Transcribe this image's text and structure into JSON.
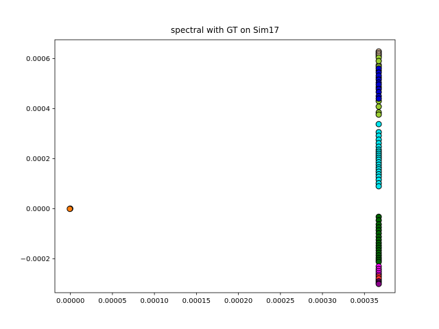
{
  "chart_data": {
    "type": "scatter",
    "title": "spectral with GT on Sim17",
    "xlabel": "",
    "ylabel": "",
    "xlim": [
      -1.85e-05,
      0.0003865
    ],
    "ylim": [
      -0.000335,
      0.000675
    ],
    "grid": false,
    "legend": "none",
    "x_ticks": [
      0.0,
      5e-05,
      0.0001,
      0.00015,
      0.0002,
      0.00025,
      0.0003,
      0.00035
    ],
    "x_tick_labels": [
      "0.00000",
      "0.00005",
      "0.00010",
      "0.00015",
      "0.00020",
      "0.00025",
      "0.00030",
      "0.00035"
    ],
    "y_ticks": [
      -0.0002,
      0.0,
      0.0002,
      0.0004,
      0.0006
    ],
    "y_tick_labels": [
      "−0.0002",
      "0.0000",
      "0.0002",
      "0.0004",
      "0.0006"
    ],
    "series": [
      {
        "color": "#ff7f0e",
        "points": [
          [
            -5e-07,
            0.0
          ],
          [
            -2e-07,
            5e-07
          ],
          [
            -7e-07,
            -3e-07
          ]
        ]
      },
      {
        "color": "#ffdab9",
        "points": [
          [
            0.000367,
            0.000628
          ],
          [
            0.000367,
            0.000622
          ],
          [
            0.000367,
            0.000616
          ],
          [
            0.000367,
            0.00061
          ],
          [
            0.000367,
            0.000574
          ]
        ]
      },
      {
        "color": "#9acd32",
        "points": [
          [
            0.000367,
            0.000604
          ],
          [
            0.000367,
            0.00059
          ],
          [
            0.000367,
            0.000568
          ],
          [
            0.000367,
            0.000552
          ],
          [
            0.000367,
            0.000524
          ],
          [
            0.000367,
            0.000486
          ],
          [
            0.000367,
            0.00043
          ],
          [
            0.000367,
            0.000408
          ],
          [
            0.000367,
            0.000385
          ],
          [
            0.000367,
            0.000376
          ]
        ]
      },
      {
        "color": "#0000cd",
        "points": [
          [
            0.000367,
            0.00056
          ],
          [
            0.000367,
            0.000544
          ],
          [
            0.000367,
            0.000532
          ],
          [
            0.000367,
            0.000516
          ],
          [
            0.000367,
            0.000504
          ],
          [
            0.000367,
            0.000496
          ],
          [
            0.000367,
            0.000478
          ],
          [
            0.000367,
            0.000466
          ],
          [
            0.000367,
            0.00045
          ],
          [
            0.000367,
            0.00044
          ]
        ]
      },
      {
        "color": "#00e5ee",
        "points": [
          [
            0.000367,
            0.000338
          ],
          [
            0.000367,
            0.000306
          ],
          [
            0.000367,
            0.000292
          ],
          [
            0.000367,
            0.000276
          ],
          [
            0.000367,
            0.000262
          ],
          [
            0.000367,
            0.000248
          ],
          [
            0.000367,
            0.000236
          ],
          [
            0.000367,
            0.000228
          ],
          [
            0.000367,
            0.00022
          ],
          [
            0.000367,
            0.000212
          ],
          [
            0.000367,
            0.000204
          ],
          [
            0.000367,
            0.000196
          ],
          [
            0.000367,
            0.000186
          ],
          [
            0.000367,
            0.000176
          ],
          [
            0.000367,
            0.000166
          ],
          [
            0.000367,
            0.000158
          ],
          [
            0.000367,
            0.000148
          ],
          [
            0.000367,
            0.000138
          ],
          [
            0.000367,
            0.000128
          ],
          [
            0.000367,
            0.000116
          ],
          [
            0.000367,
            0.000102
          ],
          [
            0.000367,
            9e-05
          ]
        ]
      },
      {
        "color": "#006400",
        "points": [
          [
            0.000367,
            -3.2e-05
          ],
          [
            0.000367,
            -4.6e-05
          ],
          [
            0.000367,
            -6.2e-05
          ],
          [
            0.000367,
            -7.4e-05
          ],
          [
            0.000367,
            -8.6e-05
          ],
          [
            0.000367,
            -9.8e-05
          ],
          [
            0.000367,
            -0.000112
          ],
          [
            0.000367,
            -0.000124
          ],
          [
            0.000367,
            -0.000136
          ],
          [
            0.000367,
            -0.000146
          ],
          [
            0.000367,
            -0.000156
          ],
          [
            0.000367,
            -0.000166
          ],
          [
            0.000367,
            -0.000176
          ],
          [
            0.000367,
            -0.000186
          ],
          [
            0.000367,
            -0.000196
          ],
          [
            0.000367,
            -0.000204
          ],
          [
            0.000367,
            -0.000212
          ]
        ]
      },
      {
        "color": "#ff00ff",
        "points": [
          [
            0.000367,
            -0.00023
          ],
          [
            0.000367,
            -0.00024
          ],
          [
            0.000367,
            -0.000248
          ],
          [
            0.000367,
            -0.000256
          ],
          [
            0.000367,
            -0.000264
          ]
        ]
      },
      {
        "color": "#ffff00",
        "points": [
          [
            0.000367,
            -0.000284
          ]
        ]
      },
      {
        "color": "#ff3030",
        "points": [
          [
            0.000367,
            -0.00027
          ],
          [
            0.000367,
            -0.000278
          ]
        ]
      },
      {
        "color": "#8b008b",
        "points": [
          [
            0.000367,
            -0.00029
          ],
          [
            0.000367,
            -0.000296
          ],
          [
            0.000367,
            -0.0003
          ]
        ]
      }
    ]
  }
}
